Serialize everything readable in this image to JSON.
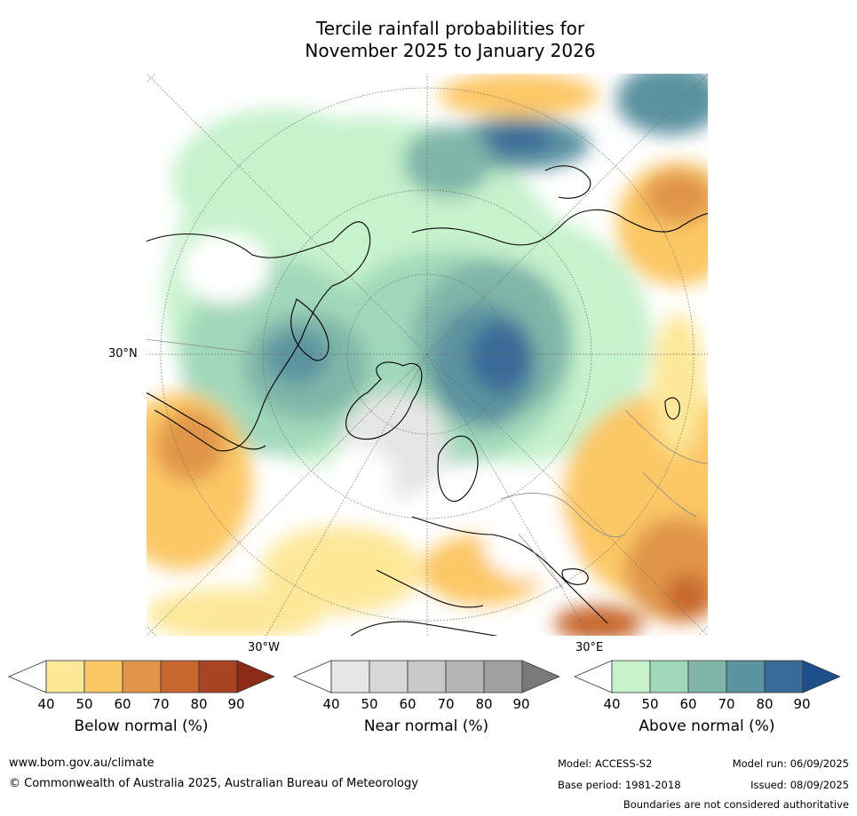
{
  "title_line1": "Tercile rainfall probabilities for",
  "title_line2": "November 2025 to January 2026",
  "map": {
    "lat_label": "30°N",
    "lon_labels": {
      "west": "30°W",
      "east": "30°E"
    }
  },
  "colorbars": [
    {
      "label": "Below normal (%)",
      "ticks": [
        "40",
        "50",
        "60",
        "70",
        "80",
        "90"
      ],
      "colors": [
        "#ffffff",
        "#fde89a",
        "#fcc766",
        "#e0954a",
        "#c7672f",
        "#a84424",
        "#8b2a15"
      ]
    },
    {
      "label": "Near normal (%)",
      "ticks": [
        "40",
        "50",
        "60",
        "70",
        "80",
        "90"
      ],
      "colors": [
        "#ffffff",
        "#e6e6e6",
        "#d8d8d8",
        "#c8c8c8",
        "#b4b4b4",
        "#a0a0a0",
        "#7a7a7a"
      ]
    },
    {
      "label": "Above normal (%)",
      "ticks": [
        "40",
        "50",
        "60",
        "70",
        "80",
        "90"
      ],
      "colors": [
        "#ffffff",
        "#c6f2cc",
        "#a2d8ba",
        "#7fb6a8",
        "#5b93a0",
        "#3a6b98",
        "#1c4f8c"
      ]
    }
  ],
  "footer": {
    "website": "www.bom.gov.au/climate",
    "copyright": "© Commonwealth of Australia 2025, Australian Bureau of Meteorology",
    "model": "Model: ACCESS-S2",
    "model_run": "Model run: 06/09/2025",
    "base_period": "Base period: 1981-2018",
    "issued": "Issued: 08/09/2025",
    "boundaries_note": "Boundaries are not considered authoritative"
  }
}
